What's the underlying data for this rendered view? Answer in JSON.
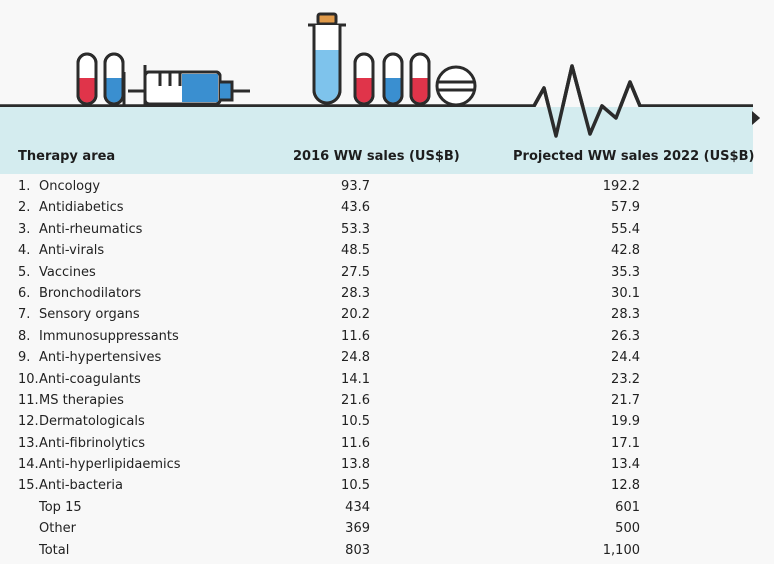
{
  "header": {
    "therapy_area": "Therapy area",
    "sales_2016": "2016 WW sales (US$B)",
    "sales_2022": "Projected WW sales 2022 (US$B)"
  },
  "colors": {
    "header_bg": "#d4ecef",
    "line": "#2b2b2b",
    "red_accent": "#e0344a",
    "blue_accent": "#3a8fd0"
  },
  "chart_data": {
    "type": "table",
    "columns": [
      "Therapy area",
      "2016 WW sales (US$B)",
      "Projected WW sales 2022 (US$B)"
    ],
    "rows": [
      {
        "rank": "1.",
        "area": "Oncology",
        "sales_2016": "93.7",
        "sales_2022": "192.2"
      },
      {
        "rank": "2.",
        "area": "Antidiabetics",
        "sales_2016": "43.6",
        "sales_2022": "57.9"
      },
      {
        "rank": "3.",
        "area": "Anti-rheumatics",
        "sales_2016": "53.3",
        "sales_2022": "55.4"
      },
      {
        "rank": "4.",
        "area": "Anti-virals",
        "sales_2016": "48.5",
        "sales_2022": "42.8"
      },
      {
        "rank": "5.",
        "area": "Vaccines",
        "sales_2016": "27.5",
        "sales_2022": "35.3"
      },
      {
        "rank": "6.",
        "area": "Bronchodilators",
        "sales_2016": "28.3",
        "sales_2022": "30.1"
      },
      {
        "rank": "7.",
        "area": "Sensory organs",
        "sales_2016": "20.2",
        "sales_2022": "28.3"
      },
      {
        "rank": "8.",
        "area": "Immunosuppressants",
        "sales_2016": "11.6",
        "sales_2022": "26.3"
      },
      {
        "rank": "9.",
        "area": "Anti-hypertensives",
        "sales_2016": "24.8",
        "sales_2022": "24.4"
      },
      {
        "rank": "10.",
        "area": "Anti-coagulants",
        "sales_2016": "14.1",
        "sales_2022": "23.2"
      },
      {
        "rank": "11.",
        "area": "MS therapies",
        "sales_2016": "21.6",
        "sales_2022": "21.7"
      },
      {
        "rank": "12.",
        "area": "Dermatologicals",
        "sales_2016": "10.5",
        "sales_2022": "19.9"
      },
      {
        "rank": "13.",
        "area": "Anti-fibrinolytics",
        "sales_2016": "11.6",
        "sales_2022": "17.1"
      },
      {
        "rank": "14.",
        "area": "Anti-hyperlipidaemics",
        "sales_2016": "13.8",
        "sales_2022": "13.4"
      },
      {
        "rank": "15.",
        "area": "Anti-bacteria",
        "sales_2016": "10.5",
        "sales_2022": "12.8"
      },
      {
        "rank": "",
        "area": "Top 15",
        "sales_2016": "434",
        "sales_2022": "601"
      },
      {
        "rank": "",
        "area": "Other",
        "sales_2016": "369",
        "sales_2022": "500"
      },
      {
        "rank": "",
        "area": "Total",
        "sales_2016": "803",
        "sales_2022": "1,100"
      }
    ]
  }
}
